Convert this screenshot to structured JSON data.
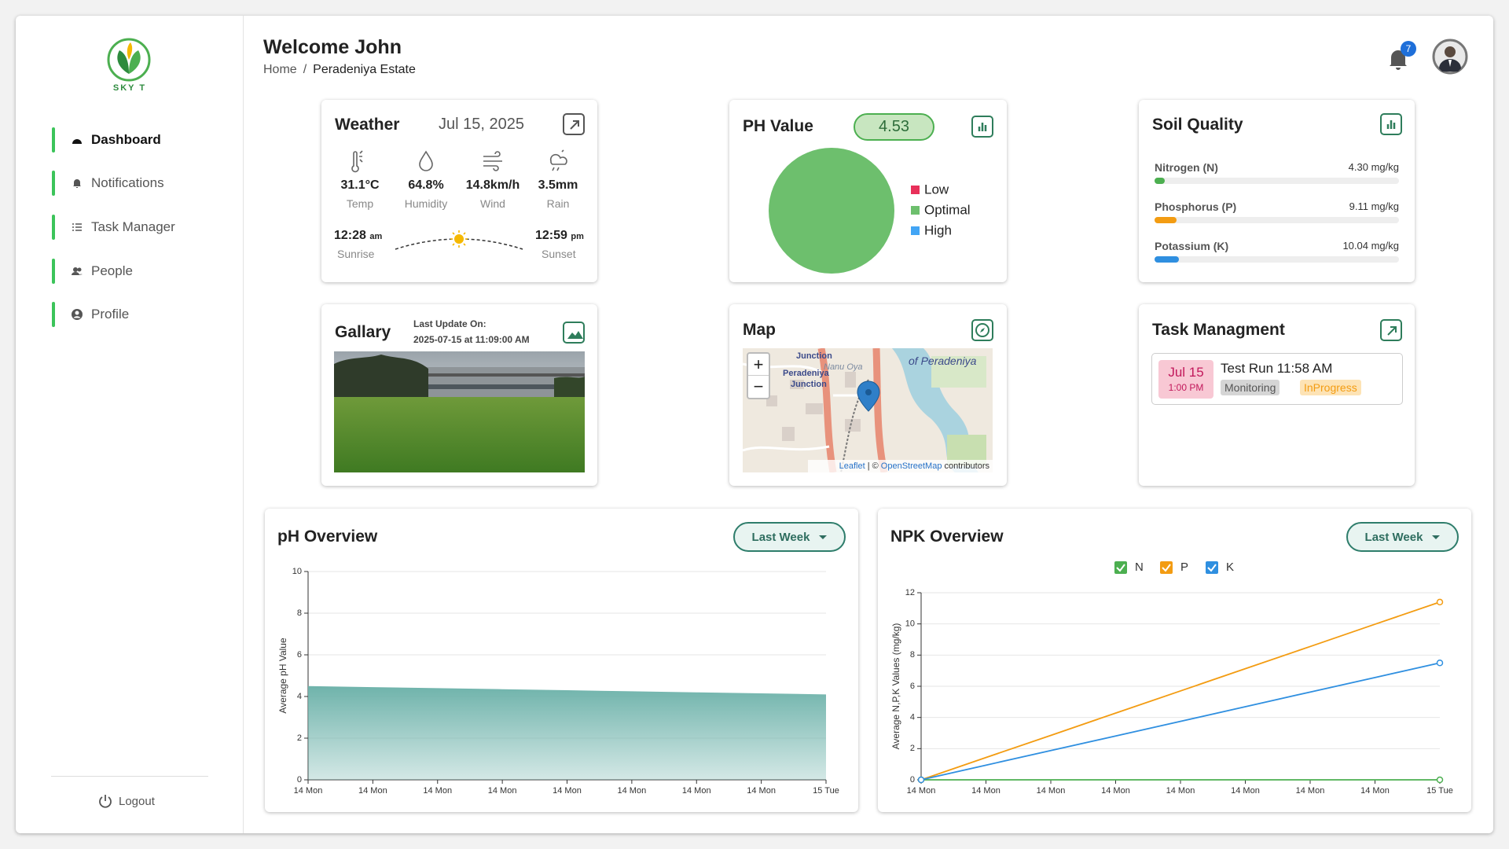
{
  "sidebar": {
    "brand": "SKY T",
    "menu": [
      "Dashboard",
      "Notifications",
      "Task Manager",
      "People",
      "Profile"
    ],
    "logout": "Logout"
  },
  "header": {
    "title": "Welcome John",
    "breadcrumb": [
      "Home",
      "Peradeniya Estate"
    ],
    "separator": "/",
    "notifications": 7
  },
  "weather": {
    "title": "Weather",
    "date": "Jul 15, 2025",
    "metrics": [
      {
        "value": "31.1°C",
        "label": "Temp"
      },
      {
        "value": "64.8%",
        "label": "Humidity"
      },
      {
        "value": "14.8km/h",
        "label": "Wind"
      },
      {
        "value": "3.5mm",
        "label": "Rain"
      }
    ],
    "sunrise": {
      "time": "12:28",
      "suffix": "am",
      "label": "Sunrise"
    },
    "sunset": {
      "time": "12:59",
      "suffix": "pm",
      "label": "Sunset"
    }
  },
  "soil": {
    "title": "Soil Quality",
    "xlim": [
      0,
      100
    ],
    "items": [
      {
        "name": "Nitrogen (N)",
        "value": 4.3,
        "value_label": "4.30 mg/kg",
        "color": "#4caf50"
      },
      {
        "name": "Phosphorus (P)",
        "value": 9.11,
        "value_label": "9.11 mg/kg",
        "color": "#f39c12"
      },
      {
        "name": "Potassium (K)",
        "value": 10.04,
        "value_label": "10.04 mg/kg",
        "color": "#2f8fe0"
      }
    ]
  },
  "gallery": {
    "title": "Gallary",
    "update_label": "Last Update On:",
    "update_time": "2025-07-15 at 11:09:00 AM"
  },
  "map": {
    "title": "Map",
    "zoom_in": "+",
    "zoom_out": "−",
    "labels": [
      "Junction",
      "Nanu Oya",
      "Peradeniya",
      "Junction",
      "of Peradeniya"
    ],
    "attribution": [
      "Leaflet",
      "| ©",
      "OpenStreetMap",
      "contributors"
    ]
  },
  "tasks": {
    "title": "Task Managment",
    "items": [
      {
        "date": "Jul 15",
        "time": "1:00 PM",
        "name": "Test Run 11:58 AM",
        "tags": [
          "Monitoring",
          "InProgress"
        ]
      }
    ]
  },
  "chart_data": [
    {
      "type": "pie",
      "title": "PH Value",
      "badge": 4.53,
      "categories": [
        "Low",
        "Optimal",
        "High"
      ],
      "values": [
        0,
        100,
        0
      ],
      "colors": [
        "#e8305a",
        "#6dbf6d",
        "#42a5f5"
      ]
    },
    {
      "type": "area",
      "title": "pH Overview",
      "filter": "Last Week",
      "ylabel": "Average pH Value",
      "categories": [
        "14 Mon",
        "14 Mon",
        "14 Mon",
        "14 Mon",
        "14 Mon",
        "14 Mon",
        "14 Mon",
        "14 Mon",
        "15 Tue"
      ],
      "values": [
        4.5,
        4.45,
        4.4,
        4.35,
        4.3,
        4.25,
        4.2,
        4.15,
        4.1
      ],
      "color": "#6fb3ab",
      "ylim": [
        0,
        10
      ],
      "yticks": [
        0,
        2,
        4,
        6,
        8,
        10
      ],
      "grid": true
    },
    {
      "type": "line",
      "title": "NPK Overview",
      "filter": "Last Week",
      "ylabel": "Average N,P,K Values (mg/kg)",
      "categories": [
        "14 Mon",
        "14 Mon",
        "14 Mon",
        "14 Mon",
        "14 Mon",
        "14 Mon",
        "14 Mon",
        "14 Mon",
        "15 Tue"
      ],
      "series": [
        {
          "name": "N",
          "color": "#4caf50",
          "values": [
            0,
            0,
            0,
            0,
            0,
            0,
            0,
            0,
            0
          ]
        },
        {
          "name": "P",
          "color": "#f39c12",
          "values": [
            0,
            1.43,
            2.85,
            4.28,
            5.7,
            7.13,
            8.55,
            9.98,
            11.4
          ]
        },
        {
          "name": "K",
          "color": "#2f8fe0",
          "values": [
            0,
            0.94,
            1.88,
            2.81,
            3.75,
            4.69,
            5.63,
            6.56,
            7.5
          ]
        }
      ],
      "ylim": [
        0,
        12
      ],
      "yticks": [
        0,
        2,
        4,
        6,
        8,
        10,
        12
      ],
      "grid": true
    }
  ]
}
